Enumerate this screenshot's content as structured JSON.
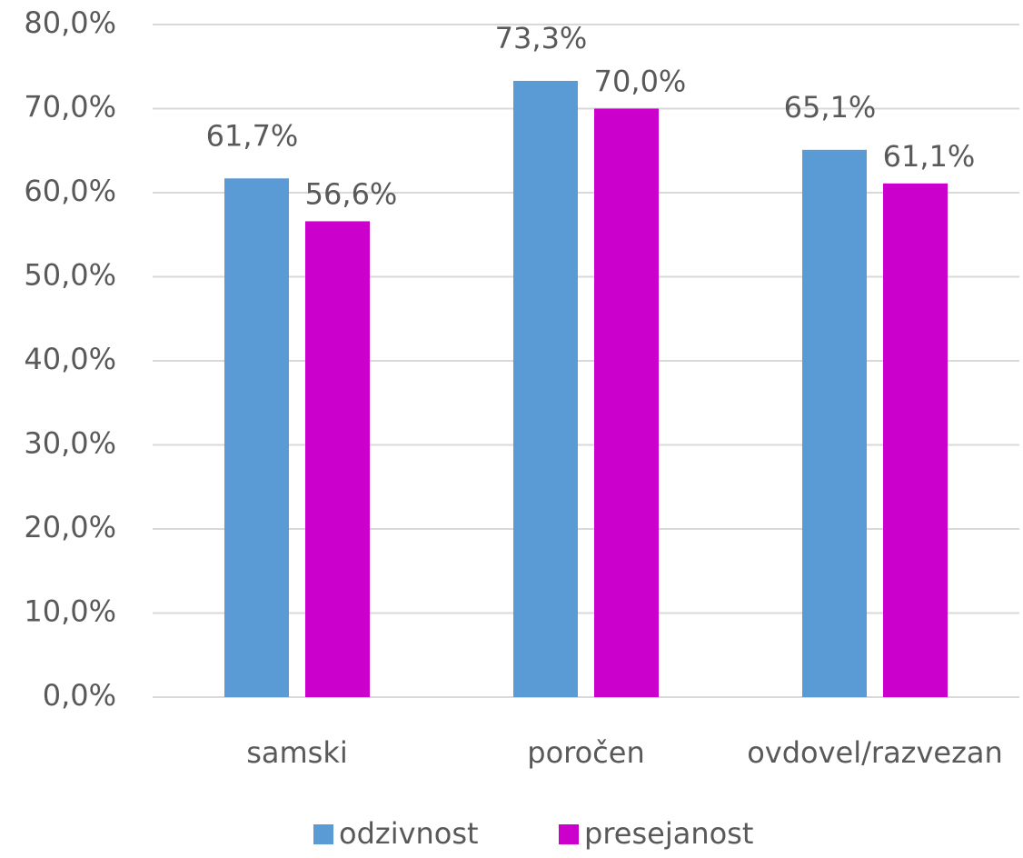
{
  "chart_data": {
    "type": "bar",
    "categories": [
      "samski",
      "poročen",
      "ovdovel/razvezan"
    ],
    "series": [
      {
        "name": "odzivnost",
        "color": "#5b9bd5",
        "values": [
          61.7,
          73.3,
          65.1
        ],
        "value_labels": [
          "61,7%",
          "73,3%",
          "65,1%"
        ]
      },
      {
        "name": "presejanost",
        "color": "#cc00cc",
        "values": [
          56.6,
          70.0,
          61.1
        ],
        "value_labels": [
          "56,6%",
          "70,0%",
          "61,1%"
        ]
      }
    ],
    "ylim": [
      0,
      80
    ],
    "yticks": [
      {
        "value": 0,
        "label": "0,0%"
      },
      {
        "value": 10,
        "label": "10,0%"
      },
      {
        "value": 20,
        "label": "20,0%"
      },
      {
        "value": 30,
        "label": "30,0%"
      },
      {
        "value": 40,
        "label": "40,0%"
      },
      {
        "value": 50,
        "label": "50,0%"
      },
      {
        "value": 60,
        "label": "60,0%"
      },
      {
        "value": 70,
        "label": "70,0%"
      },
      {
        "value": 80,
        "label": "80,0%"
      }
    ],
    "grid": true,
    "legend": "bottom"
  }
}
